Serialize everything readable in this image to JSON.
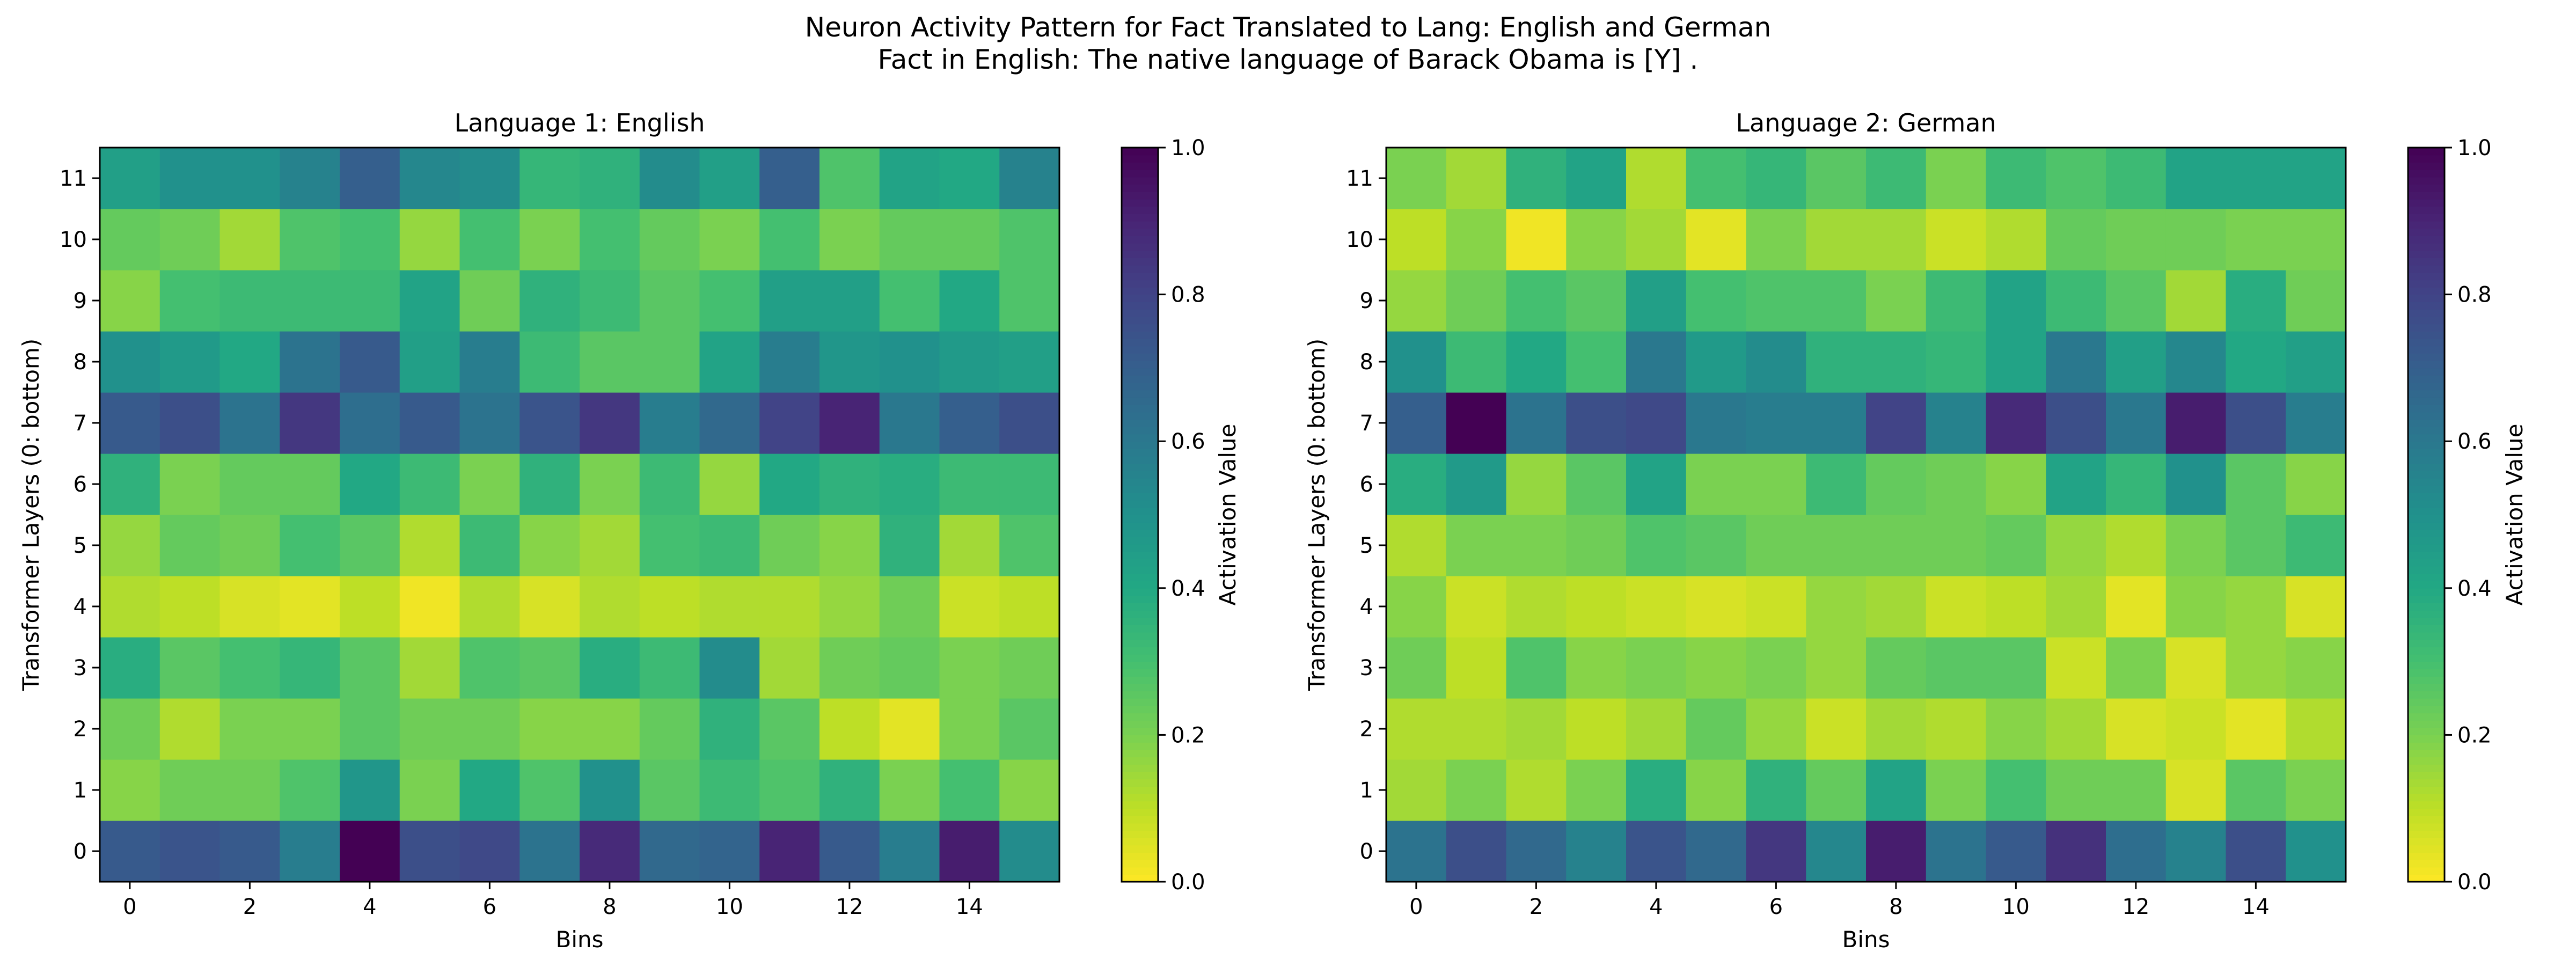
{
  "figure": {
    "title_line1": "Neuron Activity Pattern for Fact Translated to Lang: English and German",
    "title_line2": "Fact in English: The native language of Barack Obama is [Y] ."
  },
  "chart_data": [
    {
      "type": "heatmap",
      "title": "Language 1: English",
      "xlabel": "Bins",
      "ylabel": "Transformer Layers (0: bottom)",
      "colorbar_label": "Activation Value",
      "colormap": "viridis_r",
      "vmin": 0.0,
      "vmax": 1.0,
      "x_ticks": [
        0,
        2,
        4,
        6,
        8,
        10,
        12,
        14
      ],
      "y_ticks": [
        0,
        1,
        2,
        3,
        4,
        5,
        6,
        7,
        8,
        9,
        10,
        11
      ],
      "colorbar_ticks": [
        "0.0",
        "0.2",
        "0.4",
        "0.6",
        "0.8",
        "1.0"
      ],
      "rows": [
        [
          0.72,
          0.74,
          0.72,
          0.58,
          1.0,
          0.76,
          0.78,
          0.62,
          0.88,
          0.66,
          0.68,
          0.9,
          0.72,
          0.58,
          0.92,
          0.52
        ],
        [
          0.18,
          0.22,
          0.22,
          0.28,
          0.48,
          0.2,
          0.4,
          0.28,
          0.5,
          0.26,
          0.32,
          0.28,
          0.36,
          0.2,
          0.3,
          0.18
        ],
        [
          0.22,
          0.12,
          0.2,
          0.2,
          0.26,
          0.22,
          0.22,
          0.18,
          0.18,
          0.24,
          0.36,
          0.26,
          0.1,
          0.04,
          0.2,
          0.26
        ],
        [
          0.38,
          0.26,
          0.3,
          0.34,
          0.26,
          0.14,
          0.28,
          0.26,
          0.38,
          0.32,
          0.52,
          0.14,
          0.22,
          0.24,
          0.2,
          0.22
        ],
        [
          0.12,
          0.1,
          0.06,
          0.04,
          0.1,
          0.02,
          0.12,
          0.06,
          0.12,
          0.1,
          0.12,
          0.12,
          0.16,
          0.22,
          0.08,
          0.1
        ],
        [
          0.16,
          0.24,
          0.22,
          0.3,
          0.26,
          0.12,
          0.32,
          0.18,
          0.14,
          0.3,
          0.32,
          0.22,
          0.18,
          0.36,
          0.14,
          0.28
        ],
        [
          0.36,
          0.2,
          0.24,
          0.24,
          0.4,
          0.32,
          0.2,
          0.36,
          0.2,
          0.32,
          0.16,
          0.4,
          0.36,
          0.38,
          0.32,
          0.32
        ],
        [
          0.72,
          0.76,
          0.62,
          0.84,
          0.64,
          0.72,
          0.62,
          0.74,
          0.84,
          0.58,
          0.66,
          0.8,
          0.9,
          0.6,
          0.7,
          0.76
        ],
        [
          0.5,
          0.46,
          0.4,
          0.62,
          0.72,
          0.44,
          0.58,
          0.32,
          0.26,
          0.26,
          0.42,
          0.58,
          0.48,
          0.5,
          0.46,
          0.44
        ],
        [
          0.18,
          0.3,
          0.32,
          0.32,
          0.32,
          0.42,
          0.22,
          0.36,
          0.32,
          0.26,
          0.3,
          0.44,
          0.44,
          0.3,
          0.4,
          0.28
        ],
        [
          0.24,
          0.22,
          0.14,
          0.28,
          0.3,
          0.16,
          0.3,
          0.2,
          0.3,
          0.24,
          0.2,
          0.3,
          0.2,
          0.24,
          0.24,
          0.28
        ],
        [
          0.44,
          0.5,
          0.5,
          0.56,
          0.7,
          0.54,
          0.52,
          0.34,
          0.36,
          0.52,
          0.44,
          0.7,
          0.28,
          0.42,
          0.4,
          0.56
        ]
      ]
    },
    {
      "type": "heatmap",
      "title": "Language 2: German",
      "xlabel": "Bins",
      "ylabel": "Transformer Layers (0: bottom)",
      "colorbar_label": "Activation Value",
      "colormap": "viridis_r",
      "vmin": 0.0,
      "vmax": 1.0,
      "x_ticks": [
        0,
        2,
        4,
        6,
        8,
        10,
        12,
        14
      ],
      "y_ticks": [
        0,
        1,
        2,
        3,
        4,
        5,
        6,
        7,
        8,
        9,
        10,
        11
      ],
      "colorbar_ticks": [
        "0.0",
        "0.2",
        "0.4",
        "0.6",
        "0.8",
        "1.0"
      ],
      "rows": [
        [
          0.62,
          0.76,
          0.66,
          0.56,
          0.74,
          0.66,
          0.84,
          0.54,
          0.92,
          0.62,
          0.72,
          0.86,
          0.64,
          0.56,
          0.76,
          0.5
        ],
        [
          0.14,
          0.2,
          0.12,
          0.2,
          0.38,
          0.18,
          0.36,
          0.24,
          0.42,
          0.2,
          0.3,
          0.22,
          0.22,
          0.06,
          0.26,
          0.2
        ],
        [
          0.12,
          0.12,
          0.14,
          0.1,
          0.14,
          0.24,
          0.16,
          0.08,
          0.14,
          0.12,
          0.18,
          0.14,
          0.06,
          0.08,
          0.04,
          0.12
        ],
        [
          0.22,
          0.1,
          0.28,
          0.18,
          0.2,
          0.18,
          0.2,
          0.16,
          0.24,
          0.26,
          0.26,
          0.08,
          0.2,
          0.06,
          0.16,
          0.18
        ],
        [
          0.18,
          0.08,
          0.12,
          0.1,
          0.08,
          0.06,
          0.08,
          0.16,
          0.14,
          0.08,
          0.1,
          0.14,
          0.04,
          0.18,
          0.16,
          0.06
        ],
        [
          0.12,
          0.2,
          0.2,
          0.22,
          0.28,
          0.26,
          0.22,
          0.22,
          0.22,
          0.22,
          0.24,
          0.16,
          0.12,
          0.2,
          0.26,
          0.32
        ],
        [
          0.38,
          0.46,
          0.16,
          0.26,
          0.42,
          0.2,
          0.2,
          0.32,
          0.24,
          0.22,
          0.18,
          0.42,
          0.34,
          0.5,
          0.26,
          0.18
        ],
        [
          0.7,
          1.0,
          0.62,
          0.76,
          0.78,
          0.6,
          0.58,
          0.58,
          0.8,
          0.56,
          0.88,
          0.76,
          0.6,
          0.92,
          0.76,
          0.58
        ],
        [
          0.5,
          0.32,
          0.4,
          0.3,
          0.6,
          0.46,
          0.52,
          0.36,
          0.36,
          0.34,
          0.42,
          0.6,
          0.44,
          0.54,
          0.4,
          0.44
        ],
        [
          0.16,
          0.22,
          0.3,
          0.26,
          0.44,
          0.3,
          0.28,
          0.28,
          0.2,
          0.32,
          0.42,
          0.32,
          0.26,
          0.14,
          0.38,
          0.22
        ],
        [
          0.1,
          0.18,
          0.02,
          0.18,
          0.14,
          0.04,
          0.2,
          0.14,
          0.14,
          0.08,
          0.12,
          0.24,
          0.22,
          0.22,
          0.2,
          0.2
        ],
        [
          0.2,
          0.14,
          0.36,
          0.42,
          0.12,
          0.3,
          0.34,
          0.26,
          0.32,
          0.2,
          0.32,
          0.28,
          0.32,
          0.42,
          0.42,
          0.42
        ]
      ]
    }
  ]
}
